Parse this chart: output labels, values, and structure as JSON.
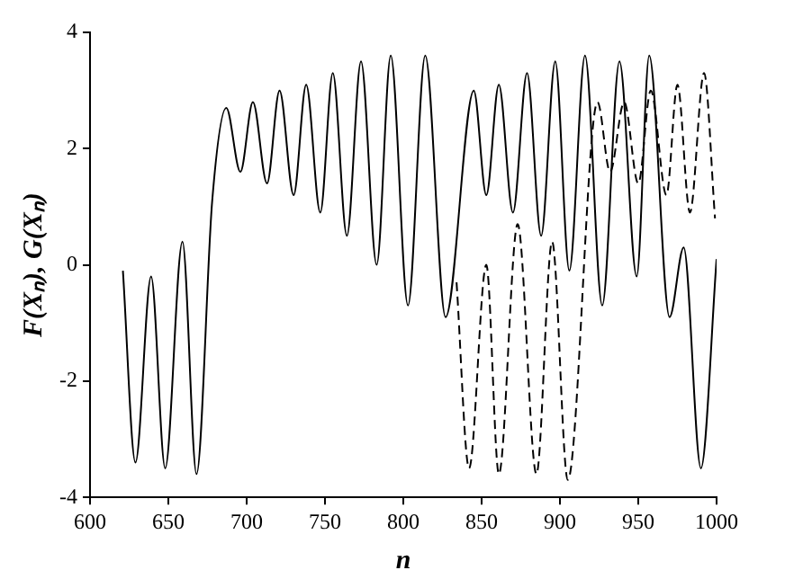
{
  "chart_data": {
    "type": "line",
    "xlabel": "n",
    "ylabel": "F(Xₙ), G(Xₙ)",
    "xlim": [
      600,
      1000
    ],
    "xticks": [
      600,
      650,
      700,
      750,
      800,
      850,
      900,
      950,
      1000
    ],
    "ylim": [
      -4,
      4
    ],
    "yticks": [
      -4,
      -2,
      0,
      2,
      4
    ],
    "grid": false,
    "legend": false,
    "marker": "none",
    "series": [
      {
        "color": "#000000",
        "line_style": "solid",
        "x": [
          621,
          629,
          639,
          648,
          659,
          668,
          678,
          687,
          696,
          704,
          713,
          721,
          730,
          738,
          747,
          755,
          764,
          773,
          783,
          792,
          803,
          814,
          827,
          845,
          853,
          861,
          870,
          879,
          888,
          897,
          906,
          916,
          927,
          938,
          949,
          957,
          970,
          979,
          990,
          1000
        ],
        "values": [
          -0.1,
          -3.4,
          -0.2,
          -3.5,
          0.4,
          -3.6,
          1.1,
          2.7,
          1.6,
          2.8,
          1.4,
          3.0,
          1.2,
          3.1,
          0.9,
          3.3,
          0.5,
          3.5,
          0.0,
          3.6,
          -0.7,
          3.6,
          -0.9,
          3.0,
          1.2,
          3.1,
          0.9,
          3.3,
          0.5,
          3.5,
          -0.1,
          3.6,
          -0.7,
          3.5,
          -0.2,
          3.6,
          -0.9,
          0.3,
          -3.5,
          0.1
        ]
      },
      {
        "color": "#000000",
        "line_style": "dashed",
        "x": [
          834,
          842,
          853,
          861,
          873,
          885,
          895,
          905,
          924,
          932,
          941,
          950,
          958,
          968,
          975,
          983,
          992,
          999
        ],
        "values": [
          -0.3,
          -3.5,
          0.0,
          -3.6,
          0.7,
          -3.6,
          0.4,
          -3.7,
          2.8,
          1.6,
          2.8,
          1.4,
          3.0,
          1.2,
          3.1,
          0.9,
          3.3,
          0.8
        ]
      }
    ]
  }
}
